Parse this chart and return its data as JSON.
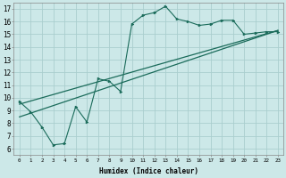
{
  "xlabel": "Humidex (Indice chaleur)",
  "bg_color": "#cce8e8",
  "grid_color": "#aacece",
  "line_color": "#1a6b5a",
  "xlim": [
    -0.5,
    23.5
  ],
  "ylim": [
    5.5,
    17.5
  ],
  "xticks": [
    0,
    1,
    2,
    3,
    4,
    5,
    6,
    7,
    8,
    9,
    10,
    11,
    12,
    13,
    14,
    15,
    16,
    17,
    18,
    19,
    20,
    21,
    22,
    23
  ],
  "yticks": [
    6,
    7,
    8,
    9,
    10,
    11,
    12,
    13,
    14,
    15,
    16,
    17
  ],
  "curve1_x": [
    0,
    1,
    2,
    3,
    4,
    5,
    6,
    7,
    8,
    9,
    10,
    11,
    12,
    13,
    14,
    15,
    16,
    17,
    18,
    19,
    20,
    21,
    22,
    23
  ],
  "curve1_y": [
    9.7,
    8.9,
    7.7,
    6.3,
    6.4,
    9.3,
    8.1,
    11.5,
    11.3,
    10.5,
    15.8,
    16.5,
    16.7,
    17.2,
    16.2,
    16.0,
    15.7,
    15.8,
    16.1,
    16.1,
    15.0,
    15.1,
    15.2,
    15.2
  ],
  "line2_x": [
    0,
    23
  ],
  "line2_y": [
    9.5,
    15.3
  ],
  "line3_x": [
    0,
    23
  ],
  "line3_y": [
    8.5,
    15.3
  ]
}
